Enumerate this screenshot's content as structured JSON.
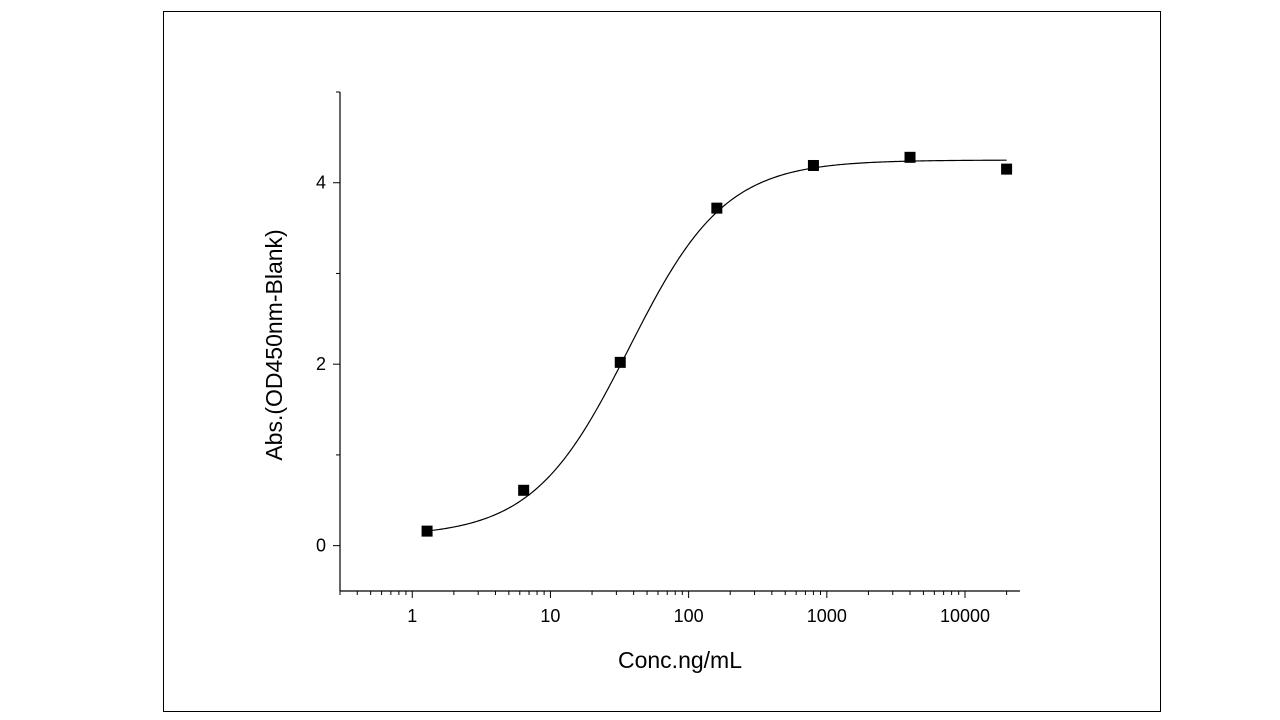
{
  "chart_data": {
    "type": "scatter",
    "title": "",
    "xlabel": "Conc.ng/mL",
    "ylabel": "Abs.(OD450nm-Blank)",
    "x_scale": "log",
    "xlim": [
      0.3,
      25000
    ],
    "ylim": [
      -0.5,
      5
    ],
    "x_ticks": [
      1,
      10,
      100,
      1000,
      10000
    ],
    "x_tick_labels": [
      "1",
      "10",
      "100",
      "1000",
      "10000"
    ],
    "y_ticks": [
      0,
      2,
      4
    ],
    "y_tick_labels": [
      "0",
      "2",
      "4"
    ],
    "grid": false,
    "legend": "none",
    "colors": {
      "marker": "#000000",
      "fit_line": "#000000",
      "axis": "#000000"
    },
    "series": [
      {
        "marker": "square",
        "x": [
          1.28,
          6.4,
          32,
          160,
          800,
          4000,
          20000
        ],
        "y": [
          0.16,
          0.61,
          2.02,
          3.72,
          4.19,
          4.28,
          4.15
        ]
      }
    ],
    "fit": {
      "type": "4PL",
      "bottom": 0.1,
      "top": 4.25,
      "ec50": 37,
      "hill": 1.25
    }
  }
}
